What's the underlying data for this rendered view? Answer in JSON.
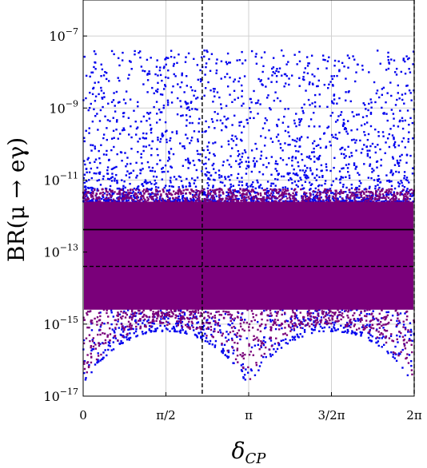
{
  "chart_data": {
    "type": "scatter",
    "title": "",
    "xlabel": "δ_CP",
    "ylabel": "BR(μ → eγ)",
    "xlim": [
      0,
      6.2832
    ],
    "ylim": [
      1e-17,
      1e-06
    ],
    "yscale": "log",
    "grid": true,
    "x_ticks": [
      {
        "value": 0,
        "label": "0"
      },
      {
        "value": 1.5708,
        "label": "π/2"
      },
      {
        "value": 3.1416,
        "label": "π"
      },
      {
        "value": 4.7124,
        "label": "3/2π"
      },
      {
        "value": 6.2832,
        "label": "2π"
      }
    ],
    "y_ticks": [
      {
        "value": 1e-07,
        "base": "10",
        "exp": "−7"
      },
      {
        "value": 1e-09,
        "base": "10",
        "exp": "−9"
      },
      {
        "value": 1e-11,
        "base": "10",
        "exp": "−11"
      },
      {
        "value": 1e-13,
        "base": "10",
        "exp": "−13"
      },
      {
        "value": 1e-15,
        "base": "10",
        "exp": "−15"
      },
      {
        "value": 1e-17,
        "base": "10",
        "exp": "−17"
      }
    ],
    "series": [
      {
        "color": "#0000ee",
        "description_points": "outer points",
        "logy_range": [
          -17,
          -7.4
        ]
      },
      {
        "color": "#7a007a",
        "description_points": "dense core",
        "logy_range": [
          -15.6,
          -11.4
        ]
      }
    ],
    "reference_lines": [
      {
        "orientation": "horizontal",
        "style": "solid",
        "y": 4.2e-13
      },
      {
        "orientation": "horizontal",
        "style": "dashed",
        "y": 4e-14
      },
      {
        "orientation": "vertical",
        "style": "dashed",
        "x": 2.26
      },
      {
        "orientation": "vertical",
        "style": "dashed",
        "x": 6.2832
      }
    ]
  }
}
